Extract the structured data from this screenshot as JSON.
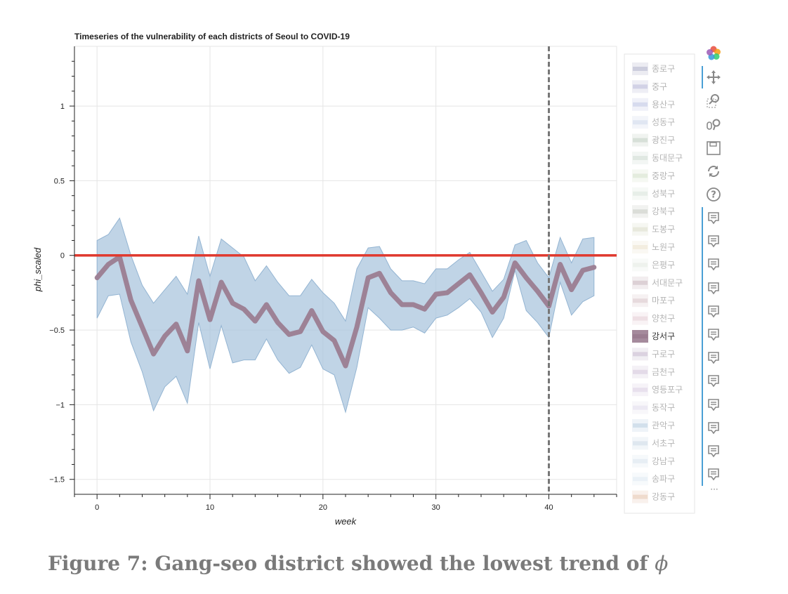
{
  "chart_data": {
    "type": "line",
    "title": "Timeseries of the vulnerability of each districts of Seoul to COVID-19",
    "xlabel": "week",
    "ylabel": "phi_scaled",
    "xlim": [
      -2,
      46
    ],
    "ylim": [
      -1.6,
      1.4
    ],
    "x_ticks": [
      0,
      10,
      20,
      30,
      40
    ],
    "x_tick_labels": [
      "0",
      "10",
      "20",
      "30",
      "40"
    ],
    "y_ticks": [
      1,
      0.5,
      0,
      -0.5,
      -1,
      -1.5
    ],
    "y_tick_labels": [
      "1",
      "0.5",
      "0",
      "−0.5",
      "−1",
      "−1.5"
    ],
    "grid": true,
    "legend_position": "right",
    "reference_line": {
      "y": 0,
      "color": "#e03a2f"
    },
    "vertical_marker": {
      "x": 40,
      "style": "dashed",
      "color": "#777777"
    },
    "band": {
      "x": [
        0,
        1,
        2,
        3,
        4,
        5,
        6,
        7,
        8,
        9,
        10,
        11,
        12,
        13,
        14,
        15,
        16,
        17,
        18,
        19,
        20,
        21,
        22,
        23,
        24,
        25,
        26,
        27,
        28,
        29,
        30,
        31,
        32,
        33,
        34,
        35,
        36,
        37,
        38,
        39,
        40,
        41,
        42,
        43,
        44
      ],
      "upper": [
        0.1,
        0.14,
        0.25,
        0.0,
        -0.2,
        -0.32,
        -0.23,
        -0.14,
        -0.26,
        0.13,
        -0.14,
        0.11,
        0.05,
        -0.01,
        -0.17,
        -0.07,
        -0.18,
        -0.27,
        -0.27,
        -0.16,
        -0.25,
        -0.32,
        -0.44,
        -0.09,
        0.05,
        0.06,
        -0.09,
        -0.17,
        -0.17,
        -0.19,
        -0.09,
        -0.09,
        -0.03,
        0.02,
        -0.11,
        -0.24,
        -0.16,
        0.07,
        0.1,
        -0.05,
        -0.15,
        0.12,
        -0.05,
        0.11,
        0.12
      ],
      "lower": [
        -0.42,
        -0.27,
        -0.26,
        -0.58,
        -0.78,
        -1.04,
        -0.88,
        -0.81,
        -0.99,
        -0.45,
        -0.76,
        -0.47,
        -0.72,
        -0.7,
        -0.7,
        -0.56,
        -0.7,
        -0.79,
        -0.75,
        -0.6,
        -0.76,
        -0.8,
        -1.05,
        -0.75,
        -0.35,
        -0.42,
        -0.5,
        -0.5,
        -0.48,
        -0.52,
        -0.42,
        -0.4,
        -0.35,
        -0.29,
        -0.38,
        -0.55,
        -0.42,
        -0.1,
        -0.37,
        -0.45,
        -0.55,
        -0.18,
        -0.4,
        -0.31,
        -0.27
      ],
      "color": "#a7c4dd"
    },
    "series": [
      {
        "name": "강서구",
        "x": [
          0,
          1,
          2,
          3,
          4,
          5,
          6,
          7,
          8,
          9,
          10,
          11,
          12,
          13,
          14,
          15,
          16,
          17,
          18,
          19,
          20,
          21,
          22,
          23,
          24,
          25,
          26,
          27,
          28,
          29,
          30,
          31,
          32,
          33,
          34,
          35,
          36,
          37,
          38,
          39,
          40,
          41,
          42,
          43,
          44
        ],
        "values": [
          -0.15,
          -0.06,
          -0.01,
          -0.3,
          -0.48,
          -0.66,
          -0.54,
          -0.46,
          -0.64,
          -0.17,
          -0.43,
          -0.18,
          -0.32,
          -0.36,
          -0.44,
          -0.33,
          -0.45,
          -0.53,
          -0.51,
          -0.37,
          -0.51,
          -0.57,
          -0.74,
          -0.48,
          -0.15,
          -0.12,
          -0.25,
          -0.33,
          -0.33,
          -0.36,
          -0.26,
          -0.25,
          -0.19,
          -0.13,
          -0.25,
          -0.38,
          -0.28,
          -0.05,
          -0.15,
          -0.24,
          -0.34,
          -0.06,
          -0.23,
          -0.1,
          -0.08
        ],
        "color": "#9b7d91"
      }
    ],
    "legend": [
      {
        "label": "종로구",
        "color": "#b3b5cc",
        "active": false
      },
      {
        "label": "중구",
        "color": "#bbbbd8",
        "active": false
      },
      {
        "label": "용산구",
        "color": "#c3c9e6",
        "active": false
      },
      {
        "label": "성동구",
        "color": "#cfd9eb",
        "active": false
      },
      {
        "label": "광진구",
        "color": "#c2d0c4",
        "active": false
      },
      {
        "label": "동대문구",
        "color": "#cfdcd3",
        "active": false
      },
      {
        "label": "중랑구",
        "color": "#d6e2cd",
        "active": false
      },
      {
        "label": "성북구",
        "color": "#dbe6dc",
        "active": false
      },
      {
        "label": "강북구",
        "color": "#c9ccc5",
        "active": false
      },
      {
        "label": "도봉구",
        "color": "#dddfcc",
        "active": false
      },
      {
        "label": "노원구",
        "color": "#ece4cf",
        "active": false
      },
      {
        "label": "은평구",
        "color": "#e5ebe4",
        "active": false
      },
      {
        "label": "서대문구",
        "color": "#cbb8c0",
        "active": false
      },
      {
        "label": "마포구",
        "color": "#dac6cc",
        "active": false
      },
      {
        "label": "양천구",
        "color": "#e6ced6",
        "active": false
      },
      {
        "label": "강서구",
        "color": "#9b7d91",
        "active": true
      },
      {
        "label": "구로구",
        "color": "#c9bcd0",
        "active": false
      },
      {
        "label": "금천구",
        "color": "#d5c6dc",
        "active": false
      },
      {
        "label": "영등포구",
        "color": "#ddd0e3",
        "active": false
      },
      {
        "label": "동작구",
        "color": "#e2dfec",
        "active": false
      },
      {
        "label": "관악구",
        "color": "#bccfe2",
        "active": false
      },
      {
        "label": "서초구",
        "color": "#cddbe8",
        "active": false
      },
      {
        "label": "강남구",
        "color": "#dae6ef",
        "active": false
      },
      {
        "label": "송파구",
        "color": "#e0eaf2",
        "active": false
      },
      {
        "label": "강동구",
        "color": "#e7c8b4",
        "active": false
      }
    ]
  },
  "toolbar": {
    "icons": [
      "bokeh-logo-icon",
      "pan-icon",
      "box-zoom-icon",
      "wheel-zoom-icon",
      "save-icon",
      "reset-icon",
      "help-icon",
      "hover-icon"
    ],
    "hover_count": 12,
    "more": "···"
  },
  "caption": {
    "text": "Figure 7: Gang-seo district showed the lowest trend of",
    "symbol": "ϕ"
  }
}
